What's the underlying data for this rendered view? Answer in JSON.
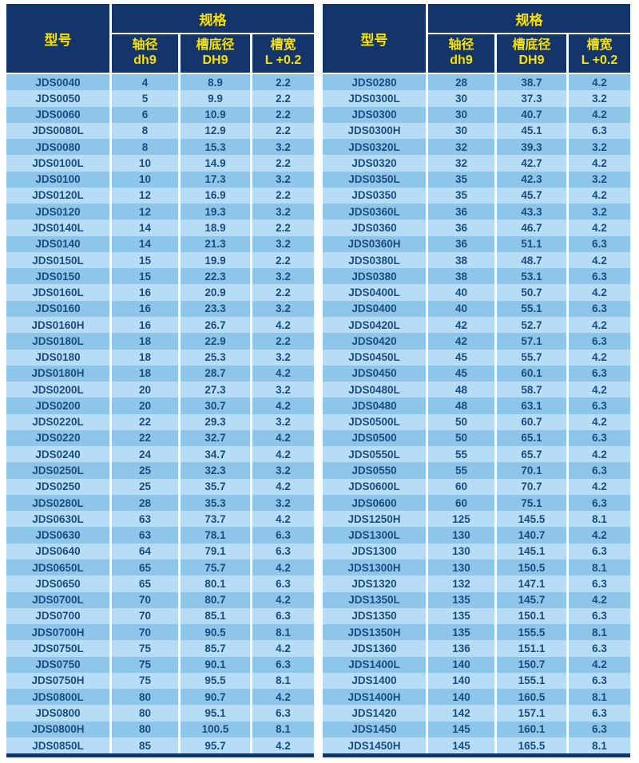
{
  "header": {
    "model_label": "型号",
    "spec_label": "规格",
    "columns": [
      {
        "line1": "轴径",
        "line2": "dh9"
      },
      {
        "line1": "槽底径",
        "line2": "DH9"
      },
      {
        "line1": "槽宽",
        "line2": "L +0.2"
      }
    ]
  },
  "colors": {
    "header_bg": "#14356B",
    "header_text": "#F8E100",
    "row_dark": "#8EC6EA",
    "row_light": "#B6DDF5",
    "cell_text": "#1B4C7F",
    "grid": "#FFFFFF"
  },
  "tables": [
    {
      "id": "left",
      "rows": [
        [
          "JDS0040",
          "4",
          "8.9",
          "2.2"
        ],
        [
          "JDS0050",
          "5",
          "9.9",
          "2.2"
        ],
        [
          "JDS0060",
          "6",
          "10.9",
          "2.2"
        ],
        [
          "JDS0080L",
          "8",
          "12.9",
          "2.2"
        ],
        [
          "JDS0080",
          "8",
          "15.3",
          "3.2"
        ],
        [
          "JDS0100L",
          "10",
          "14.9",
          "2.2"
        ],
        [
          "JDS0100",
          "10",
          "17.3",
          "3.2"
        ],
        [
          "JDS0120L",
          "12",
          "16.9",
          "2.2"
        ],
        [
          "JDS0120",
          "12",
          "19.3",
          "3.2"
        ],
        [
          "JDS0140L",
          "14",
          "18.9",
          "2.2"
        ],
        [
          "JDS0140",
          "14",
          "21.3",
          "3.2"
        ],
        [
          "JDS0150L",
          "15",
          "19.9",
          "2.2"
        ],
        [
          "JDS0150",
          "15",
          "22.3",
          "3.2"
        ],
        [
          "JDS0160L",
          "16",
          "20.9",
          "2.2"
        ],
        [
          "JDS0160",
          "16",
          "23.3",
          "3.2"
        ],
        [
          "JDS0160H",
          "16",
          "26.7",
          "4.2"
        ],
        [
          "JDS0180L",
          "18",
          "22.9",
          "2.2"
        ],
        [
          "JDS0180",
          "18",
          "25.3",
          "3.2"
        ],
        [
          "JDS0180H",
          "18",
          "28.7",
          "4.2"
        ],
        [
          "JDS0200L",
          "20",
          "27.3",
          "3.2"
        ],
        [
          "JDS0200",
          "20",
          "30.7",
          "4.2"
        ],
        [
          "JDS0220L",
          "22",
          "29.3",
          "3.2"
        ],
        [
          "JDS0220",
          "22",
          "32.7",
          "4.2"
        ],
        [
          "JDS0240",
          "24",
          "34.7",
          "4.2"
        ],
        [
          "JDS0250L",
          "25",
          "32.3",
          "3.2"
        ],
        [
          "JDS0250",
          "25",
          "35.7",
          "4.2"
        ],
        [
          "JDS0280L",
          "28",
          "35.3",
          "3.2"
        ],
        [
          "JDS0630L",
          "63",
          "73.7",
          "4.2"
        ],
        [
          "JDS0630",
          "63",
          "78.1",
          "6.3"
        ],
        [
          "JDS0640",
          "64",
          "79.1",
          "6.3"
        ],
        [
          "JDS0650L",
          "65",
          "75.7",
          "4.2"
        ],
        [
          "JDS0650",
          "65",
          "80.1",
          "6.3"
        ],
        [
          "JDS0700L",
          "70",
          "80.7",
          "4.2"
        ],
        [
          "JDS0700",
          "70",
          "85.1",
          "6.3"
        ],
        [
          "JDS0700H",
          "70",
          "90.5",
          "8.1"
        ],
        [
          "JDS0750L",
          "75",
          "85.7",
          "4.2"
        ],
        [
          "JDS0750",
          "75",
          "90.1",
          "6.3"
        ],
        [
          "JDS0750H",
          "75",
          "95.5",
          "8.1"
        ],
        [
          "JDS0800L",
          "80",
          "90.7",
          "4.2"
        ],
        [
          "JDS0800",
          "80",
          "95.1",
          "6.3"
        ],
        [
          "JDS0800H",
          "80",
          "100.5",
          "8.1"
        ],
        [
          "JDS0850L",
          "85",
          "95.7",
          "4.2"
        ]
      ]
    },
    {
      "id": "right",
      "rows": [
        [
          "JDS0280",
          "28",
          "38.7",
          "4.2"
        ],
        [
          "JDS0300L",
          "30",
          "37.3",
          "3.2"
        ],
        [
          "JDS0300",
          "30",
          "40.7",
          "4.2"
        ],
        [
          "JDS0300H",
          "30",
          "45.1",
          "6.3"
        ],
        [
          "JDS0320L",
          "32",
          "39.3",
          "3.2"
        ],
        [
          "JDS0320",
          "32",
          "42.7",
          "4.2"
        ],
        [
          "JDS0350L",
          "35",
          "42.3",
          "3.2"
        ],
        [
          "JDS0350",
          "35",
          "45.7",
          "4.2"
        ],
        [
          "JDS0360L",
          "36",
          "43.3",
          "3.2"
        ],
        [
          "JDS0360",
          "36",
          "46.7",
          "4.2"
        ],
        [
          "JDS0360H",
          "36",
          "51.1",
          "6.3"
        ],
        [
          "JDS0380L",
          "38",
          "48.7",
          "4.2"
        ],
        [
          "JDS0380",
          "38",
          "53.1",
          "6.3"
        ],
        [
          "JDS0400L",
          "40",
          "50.7",
          "4.2"
        ],
        [
          "JDS0400",
          "40",
          "55.1",
          "6.3"
        ],
        [
          "JDS0420L",
          "42",
          "52.7",
          "4.2"
        ],
        [
          "JDS0420",
          "42",
          "57.1",
          "6.3"
        ],
        [
          "JDS0450L",
          "45",
          "55.7",
          "4.2"
        ],
        [
          "JDS0450",
          "45",
          "60.1",
          "6.3"
        ],
        [
          "JDS0480L",
          "48",
          "58.7",
          "4.2"
        ],
        [
          "JDS0480",
          "48",
          "63.1",
          "6.3"
        ],
        [
          "JDS0500L",
          "50",
          "60.7",
          "4.2"
        ],
        [
          "JDS0500",
          "50",
          "65.1",
          "6.3"
        ],
        [
          "JDS0550L",
          "55",
          "65.7",
          "4.2"
        ],
        [
          "JDS0550",
          "55",
          "70.1",
          "6.3"
        ],
        [
          "JDS0600L",
          "60",
          "70.7",
          "4.2"
        ],
        [
          "JDS0600",
          "60",
          "75.1",
          "6.3"
        ],
        [
          "JDS1250H",
          "125",
          "145.5",
          "8.1"
        ],
        [
          "JDS1300L",
          "130",
          "140.7",
          "4.2"
        ],
        [
          "JDS1300",
          "130",
          "145.1",
          "6.3"
        ],
        [
          "JDS1300H",
          "130",
          "150.5",
          "8.1"
        ],
        [
          "JDS1320",
          "132",
          "147.1",
          "6.3"
        ],
        [
          "JDS1350L",
          "135",
          "145.7",
          "4.2"
        ],
        [
          "JDS1350",
          "135",
          "150.1",
          "6.3"
        ],
        [
          "JDS1350H",
          "135",
          "155.5",
          "8.1"
        ],
        [
          "JDS1360",
          "136",
          "151.1",
          "6.3"
        ],
        [
          "JDS1400L",
          "140",
          "150.7",
          "4.2"
        ],
        [
          "JDS1400",
          "140",
          "155.1",
          "6.3"
        ],
        [
          "JDS1400H",
          "140",
          "160.5",
          "8.1"
        ],
        [
          "JDS1420",
          "142",
          "157.1",
          "6.3"
        ],
        [
          "JDS1450",
          "145",
          "160.1",
          "6.3"
        ],
        [
          "JDS1450H",
          "145",
          "165.5",
          "8.1"
        ]
      ]
    }
  ]
}
